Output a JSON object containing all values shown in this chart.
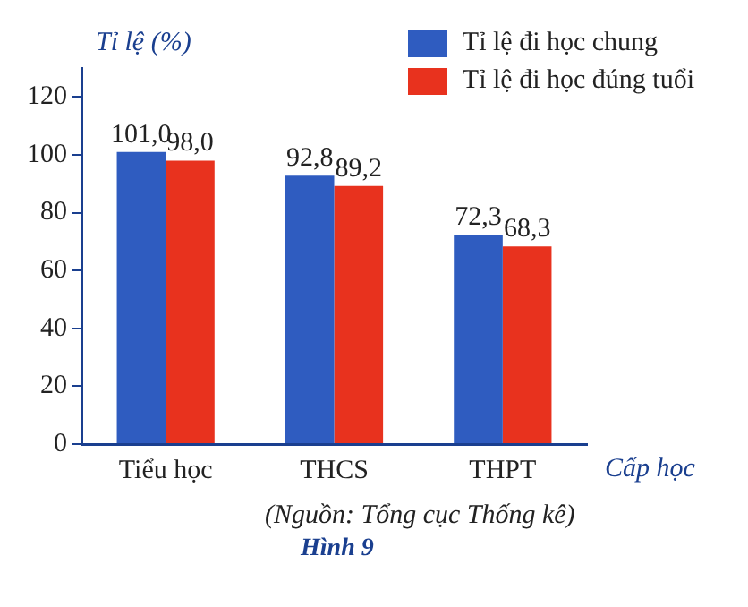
{
  "chart_data": {
    "type": "bar",
    "ylabel": "Tỉ lệ (%)",
    "xlabel": "Cấp học",
    "categories": [
      "Tiểu học",
      "THCS",
      "THPT"
    ],
    "series": [
      {
        "name": "Tỉ lệ đi học chung",
        "color": "#2f5cc0",
        "values": [
          101.0,
          92.8,
          72.3
        ],
        "value_labels": [
          "101,0",
          "92,8",
          "72,3"
        ]
      },
      {
        "name": "Tỉ lệ đi học đúng tuổi",
        "color": "#e8321e",
        "values": [
          98.0,
          89.2,
          68.3
        ],
        "value_labels": [
          "98,0",
          "89,2",
          "68,3"
        ]
      }
    ],
    "ylim": [
      0,
      130
    ],
    "yticks": [
      0,
      20,
      40,
      60,
      80,
      100,
      120
    ],
    "grid": false,
    "legend": "top right",
    "annotations": [
      "(Nguồn: Tổng cục Thống kê)",
      "Hình 9"
    ]
  }
}
